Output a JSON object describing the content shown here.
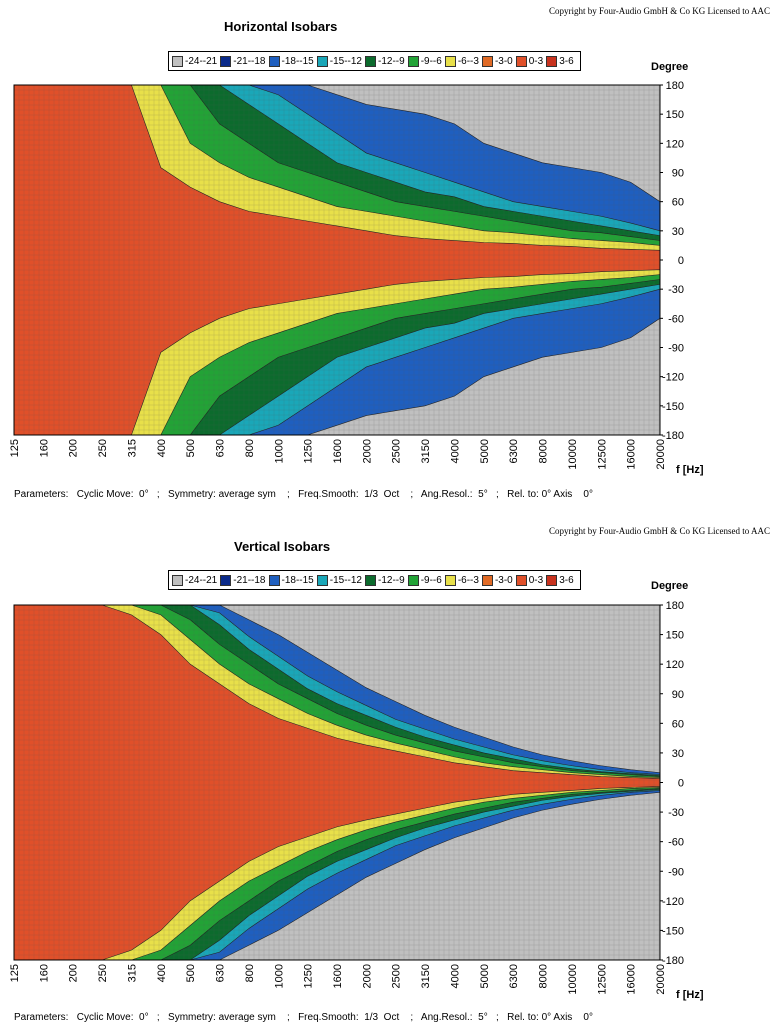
{
  "colors": {
    "c_m24_m21": "#c0c0c0",
    "c_m21_m18": "#0a2a8a",
    "c_m18_m15": "#1f5fbf",
    "c_m15_m12": "#1aa7b8",
    "c_m12_m9": "#0c6b2d",
    "c_m9_m6": "#22a336",
    "c_m6_m3": "#e8e04a",
    "c_m3_0": "#e06a25",
    "c_0_3": "#e0502a",
    "c_3_6": "#c8321e",
    "grid": "#555555"
  },
  "legend": [
    {
      "label": "-24--21",
      "color_key": "c_m24_m21"
    },
    {
      "label": "-21--18",
      "color_key": "c_m21_m18"
    },
    {
      "label": "-18--15",
      "color_key": "c_m18_m15"
    },
    {
      "label": "-15--12",
      "color_key": "c_m15_m12"
    },
    {
      "label": "-12--9",
      "color_key": "c_m12_m9"
    },
    {
      "label": "-9--6",
      "color_key": "c_m9_m6"
    },
    {
      "label": "-6--3",
      "color_key": "c_m6_m3"
    },
    {
      "label": "-3-0",
      "color_key": "c_m3_0"
    },
    {
      "label": "0-3",
      "color_key": "c_0_3"
    },
    {
      "label": "3-6",
      "color_key": "c_3_6"
    }
  ],
  "top": {
    "copyright": "Copyright by Four-Audio GmbH & Co KG   Licensed to AAC",
    "title": "Horizontal Isobars",
    "y_unit": "Degree",
    "x_unit": "f [Hz]",
    "params": "Parameters:   Cyclic Move:  0°   ;   Symmetry: average sym    ;   Freq.Smooth:  1/3  Oct    ;   Ang.Resol.:  5°   ;   Rel. to: 0° Axis    0°"
  },
  "bottom": {
    "copyright": "Copyright by Four-Audio GmbH & Co KG   Licensed to AAC",
    "title": "Vertical Isobars",
    "y_unit": "Degree",
    "x_unit": "f [Hz]",
    "params": "Parameters:   Cyclic Move:  0°   ;   Symmetry: average sym    ;   Freq.Smooth:  1/3  Oct    ;   Ang.Resol.:  5°   ;   Rel. to: 0° Axis    0°"
  },
  "chart_data": [
    {
      "type": "heatmap",
      "title": "Horizontal Isobars",
      "xlabel": "f [Hz]",
      "ylabel": "Degree",
      "x_ticks": [
        "125",
        "160",
        "200",
        "250",
        "315",
        "400",
        "500",
        "630",
        "800",
        "1000",
        "1250",
        "1600",
        "2000",
        "2500",
        "3150",
        "4000",
        "5000",
        "6300",
        "8000",
        "10000",
        "12500",
        "16000",
        "20000"
      ],
      "y_ticks": [
        180,
        150,
        120,
        90,
        60,
        30,
        0,
        -30,
        -60,
        -90,
        -120,
        -150,
        -180
      ],
      "xlim": [
        125,
        20000
      ],
      "ylim": [
        -180,
        180
      ],
      "x_scale": "log",
      "levels_db": [
        "-24--21",
        "-21--18",
        "-18--15",
        "-15--12",
        "-12--9",
        "-9--6",
        "-6--3",
        "-3-0",
        "0-3",
        "3-6"
      ],
      "contours": [
        {
          "level": "-3 dB",
          "angle_deg": [
            180,
            180,
            180,
            180,
            180,
            95,
            75,
            60,
            50,
            45,
            40,
            35,
            30,
            25,
            22,
            20,
            18,
            17,
            15,
            14,
            12,
            11,
            10
          ]
        },
        {
          "level": "-6 dB",
          "angle_deg": [
            180,
            180,
            180,
            180,
            180,
            180,
            120,
            100,
            85,
            75,
            65,
            55,
            50,
            45,
            40,
            35,
            30,
            28,
            25,
            22,
            20,
            18,
            15
          ]
        },
        {
          "level": "-9 dB",
          "angle_deg": [
            180,
            180,
            180,
            180,
            180,
            180,
            180,
            140,
            120,
            100,
            90,
            80,
            70,
            60,
            55,
            50,
            45,
            40,
            35,
            30,
            28,
            24,
            20
          ]
        },
        {
          "level": "-12 dB",
          "angle_deg": [
            180,
            180,
            180,
            180,
            180,
            180,
            180,
            180,
            160,
            140,
            120,
            100,
            90,
            80,
            70,
            65,
            55,
            50,
            45,
            40,
            35,
            30,
            25
          ]
        },
        {
          "level": "-15 dB",
          "angle_deg": [
            180,
            180,
            180,
            180,
            180,
            180,
            180,
            180,
            180,
            170,
            150,
            130,
            110,
            100,
            90,
            80,
            70,
            60,
            55,
            50,
            45,
            38,
            30
          ]
        },
        {
          "level": "-21 dB",
          "angle_deg": [
            180,
            180,
            180,
            180,
            180,
            180,
            180,
            180,
            180,
            180,
            180,
            170,
            160,
            155,
            150,
            140,
            120,
            110,
            100,
            95,
            90,
            80,
            60
          ]
        }
      ]
    },
    {
      "type": "heatmap",
      "title": "Vertical Isobars",
      "xlabel": "f [Hz]",
      "ylabel": "Degree",
      "x_ticks": [
        "125",
        "160",
        "200",
        "250",
        "315",
        "400",
        "500",
        "630",
        "800",
        "1000",
        "1250",
        "1600",
        "2000",
        "2500",
        "3150",
        "4000",
        "5000",
        "6300",
        "8000",
        "10000",
        "12500",
        "16000",
        "20000"
      ],
      "y_ticks": [
        180,
        150,
        120,
        90,
        60,
        30,
        0,
        -30,
        -60,
        -90,
        -120,
        -150,
        -180
      ],
      "xlim": [
        125,
        20000
      ],
      "ylim": [
        -180,
        180
      ],
      "x_scale": "log",
      "levels_db": [
        "-24--21",
        "-21--18",
        "-18--15",
        "-15--12",
        "-12--9",
        "-9--6",
        "-6--3",
        "-3-0",
        "0-3",
        "3-6"
      ],
      "contours": [
        {
          "level": "-3 dB",
          "angle_deg": [
            180,
            180,
            180,
            180,
            170,
            150,
            120,
            100,
            80,
            65,
            55,
            45,
            38,
            32,
            26,
            20,
            16,
            12,
            10,
            8,
            6,
            5,
            4
          ]
        },
        {
          "level": "-6 dB",
          "angle_deg": [
            180,
            180,
            180,
            180,
            180,
            170,
            145,
            120,
            100,
            85,
            70,
            58,
            48,
            40,
            33,
            26,
            20,
            16,
            13,
            10,
            8,
            6,
            5
          ]
        },
        {
          "level": "-9 dB",
          "angle_deg": [
            180,
            180,
            180,
            180,
            180,
            180,
            165,
            140,
            120,
            100,
            85,
            70,
            58,
            48,
            40,
            32,
            26,
            20,
            16,
            12,
            10,
            8,
            6
          ]
        },
        {
          "level": "-12 dB",
          "angle_deg": [
            180,
            180,
            180,
            180,
            180,
            180,
            180,
            160,
            135,
            115,
            95,
            80,
            68,
            56,
            46,
            38,
            30,
            24,
            18,
            14,
            11,
            9,
            7
          ]
        },
        {
          "level": "-15 dB",
          "angle_deg": [
            180,
            180,
            180,
            180,
            180,
            180,
            180,
            172,
            148,
            128,
            108,
            92,
            78,
            64,
            54,
            44,
            36,
            28,
            22,
            17,
            13,
            10,
            8
          ]
        },
        {
          "level": "-21 dB",
          "angle_deg": [
            180,
            180,
            180,
            180,
            180,
            180,
            180,
            180,
            165,
            150,
            132,
            114,
            96,
            82,
            68,
            56,
            46,
            36,
            28,
            22,
            17,
            13,
            10
          ]
        }
      ]
    }
  ]
}
